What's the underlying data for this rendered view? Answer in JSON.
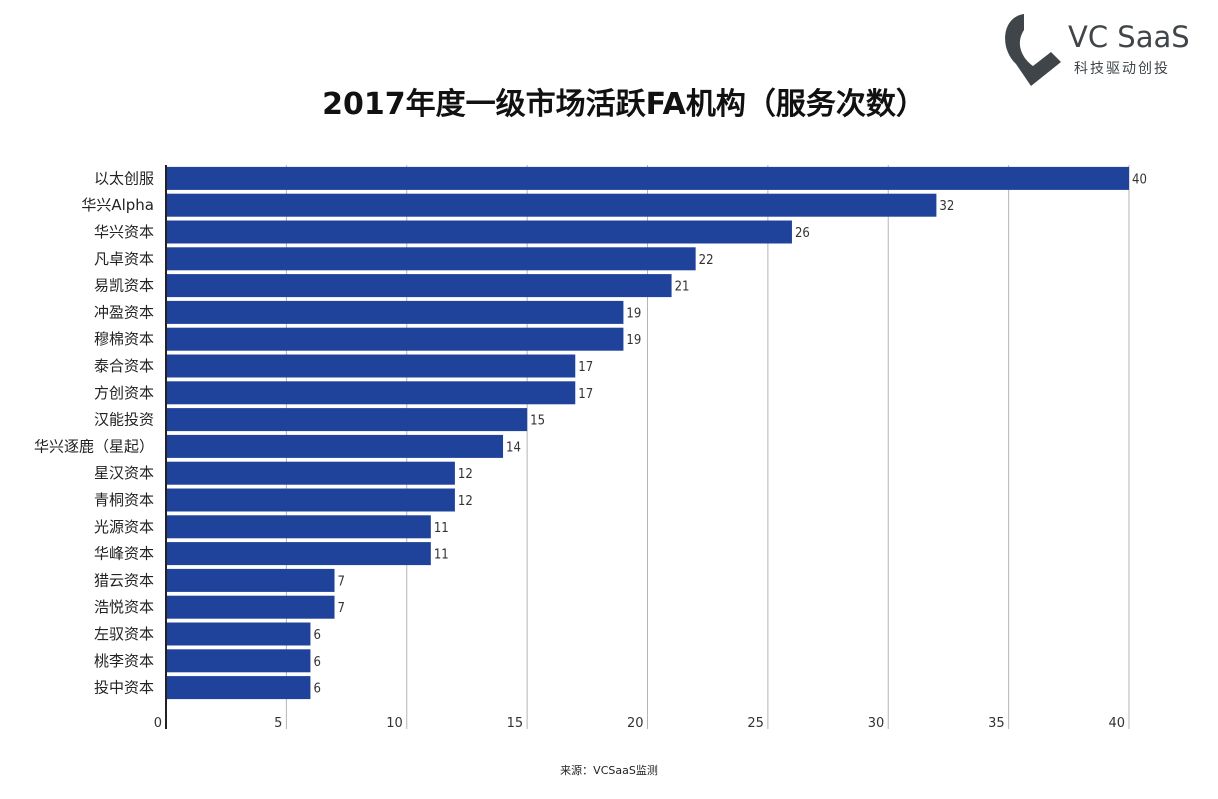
{
  "logo": {
    "name": "VC SaaS",
    "tagline": "科技驱动创投",
    "color": "#3f4548"
  },
  "source": "来源：VCSaaS监测",
  "chart_data": {
    "type": "bar",
    "orientation": "horizontal",
    "title": "2017年度一级市场活跃FA机构（服务次数）",
    "xlabel": "",
    "ylabel": "",
    "xlim": [
      0,
      40
    ],
    "ticks": [
      0,
      5,
      10,
      15,
      20,
      25,
      30,
      35,
      40
    ],
    "grid": "vertical",
    "legend": "none",
    "bar_color": "#1f439a",
    "categories": [
      "以太创服",
      "华兴Alpha",
      "华兴资本",
      "凡卓资本",
      "易凯资本",
      "冲盈资本",
      "穆棉资本",
      "泰合资本",
      "方创资本",
      "汉能投资",
      "华兴逐鹿（星起）",
      "星汉资本",
      "青桐资本",
      "光源资本",
      "华峰资本",
      "猎云资本",
      "浩悦资本",
      "左驭资本",
      "桃李资本",
      "投中资本"
    ],
    "values": [
      40,
      32,
      26,
      22,
      21,
      19,
      19,
      17,
      17,
      15,
      14,
      12,
      12,
      11,
      11,
      7,
      7,
      6,
      6,
      6
    ]
  }
}
